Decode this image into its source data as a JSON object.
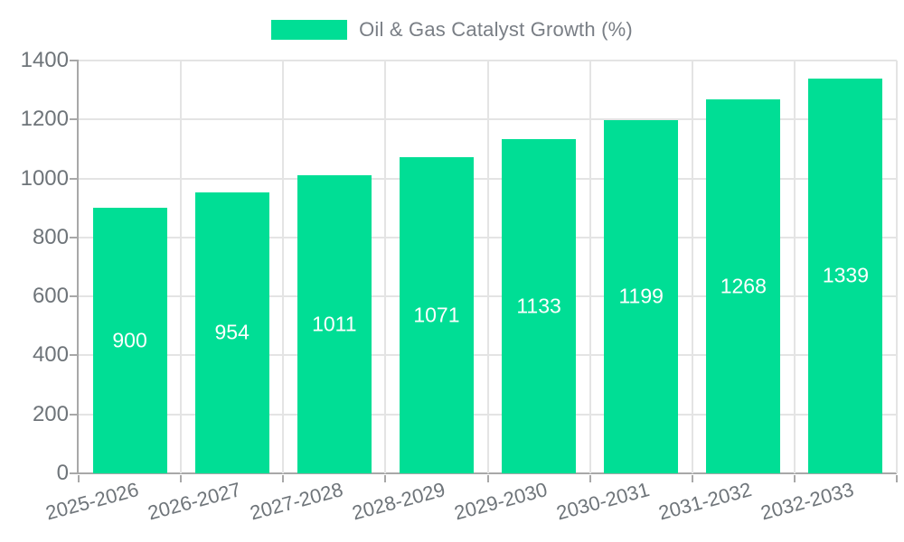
{
  "chart_data": {
    "type": "bar",
    "title": "Oil & Gas Catalyst Growth (%)",
    "legend": {
      "label": "Oil & Gas Catalyst Growth (%)",
      "position": "top-center"
    },
    "categories": [
      "2025-2026",
      "2026-2027",
      "2027-2028",
      "2028-2029",
      "2029-2030",
      "2030-2031",
      "2031-2032",
      "2032-2033"
    ],
    "series": [
      {
        "name": "Oil & Gas Catalyst Growth (%)",
        "values": [
          900,
          954,
          1011,
          1071,
          1133,
          1199,
          1268,
          1339
        ]
      }
    ],
    "xlabel": "",
    "ylabel": "",
    "ylim": [
      0,
      1400
    ],
    "ytick_step": 200,
    "ytick_labels": [
      "0",
      "200",
      "400",
      "600",
      "800",
      "1000",
      "1200",
      "1400"
    ],
    "grid": true,
    "bar_color": "#00DE95",
    "value_label_color": "#FFFFFF",
    "axis_label_color": "#6E7479",
    "gridline_color": "#E4E4E4",
    "axis_line_color": "#A8A8A8"
  }
}
